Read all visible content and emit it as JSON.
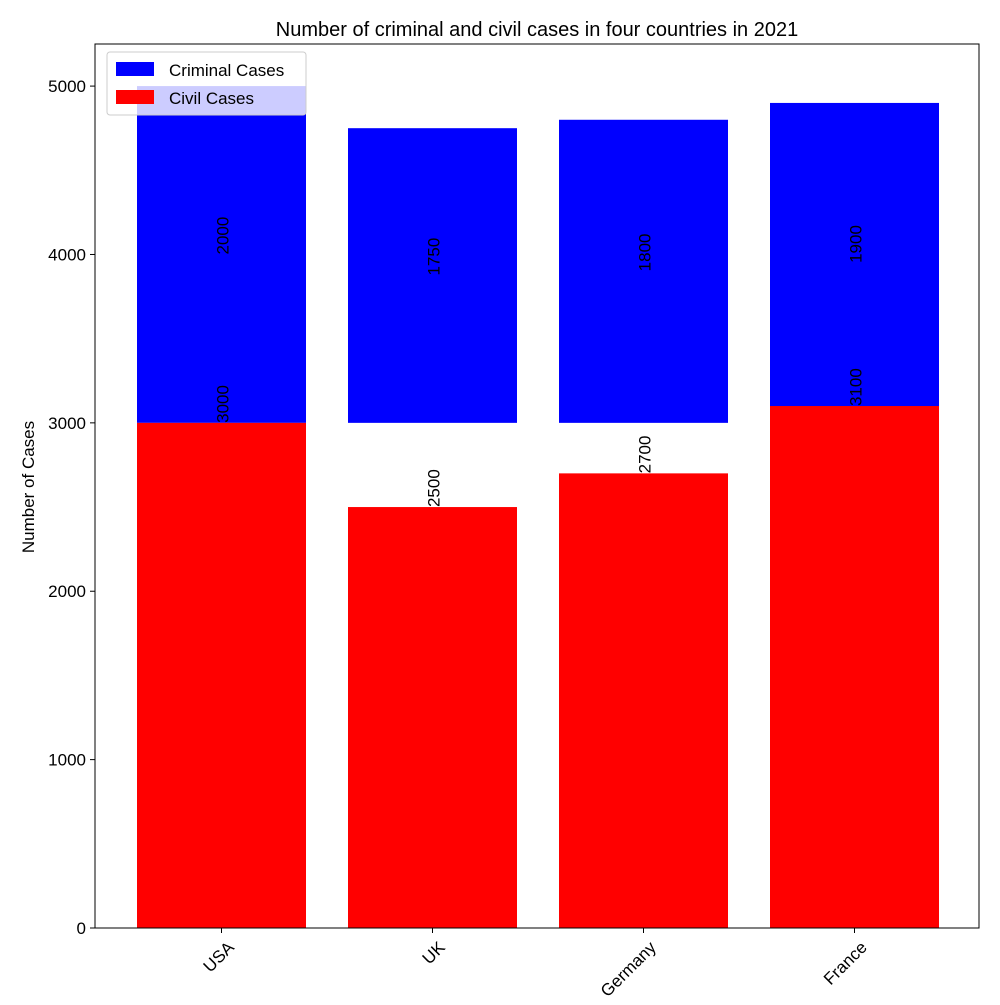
{
  "chart_data": {
    "type": "bar",
    "title": "Number of criminal and civil cases in four countries in 2021",
    "xlabel": "",
    "ylabel": "Number of Cases",
    "categories": [
      "USA",
      "UK",
      "Germany",
      "France"
    ],
    "series": [
      {
        "name": "Criminal Cases",
        "color": "#0000ff",
        "bottom": [
          3000,
          3000,
          3000,
          3000
        ],
        "values": [
          2000,
          1750,
          1800,
          1900
        ]
      },
      {
        "name": "Civil Cases",
        "color": "#ff0000",
        "bottom": [
          0,
          0,
          0,
          0
        ],
        "values": [
          3000,
          2500,
          2700,
          3100
        ]
      }
    ],
    "ylim": [
      0,
      5250
    ],
    "yticks": [
      0,
      1000,
      2000,
      3000,
      4000,
      5000
    ],
    "legend": "top-left",
    "grid": false
  }
}
